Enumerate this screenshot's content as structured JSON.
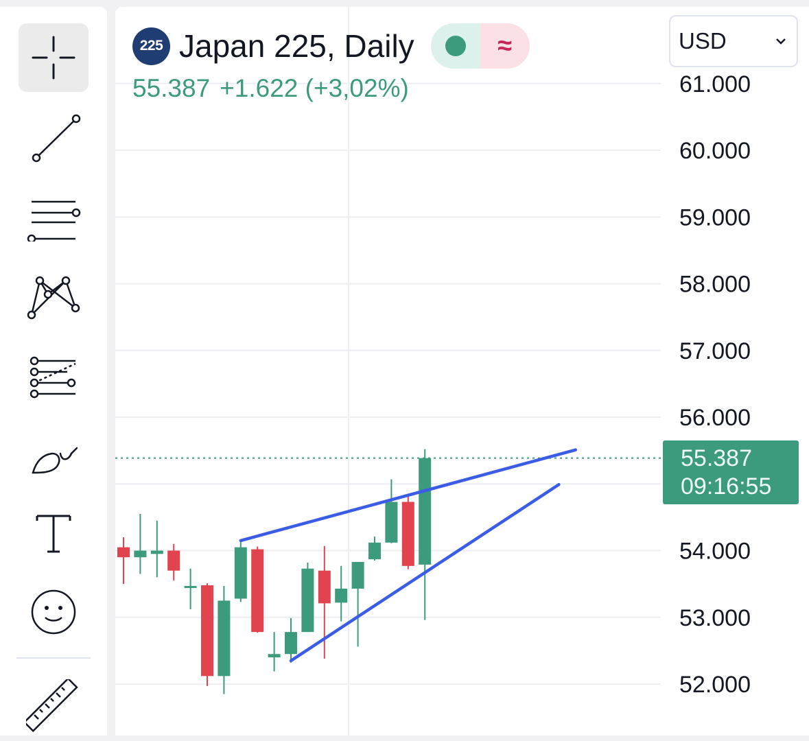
{
  "toolbar": {
    "tools": [
      {
        "name": "crosshair",
        "active": true
      },
      {
        "name": "trend-line"
      },
      {
        "name": "horizontal-lines"
      },
      {
        "name": "pattern"
      },
      {
        "name": "fib-retracement"
      },
      {
        "name": "brush"
      },
      {
        "name": "text"
      },
      {
        "name": "emoji"
      },
      {
        "name": "ruler"
      }
    ]
  },
  "header": {
    "symbol_badge": "225",
    "title": "Japan 225, Daily",
    "status_icon": "≈",
    "price": "55.387",
    "change": "+1.622 (+3,02%)"
  },
  "currency": {
    "label": "USD"
  },
  "price_tag": {
    "price": "55.387",
    "countdown": "09:16:55"
  },
  "colors": {
    "up": "#3c9a7d",
    "down": "#e2444f",
    "trendline": "#3b5ce6",
    "grid": "#eceef2",
    "axis_text": "#131722"
  },
  "chart_data": {
    "type": "candlestick",
    "title": "Japan 225, Daily",
    "currency": "USD",
    "y_axis": {
      "ticks": [
        "61.000",
        "60.000",
        "59.000",
        "58.000",
        "57.000",
        "56.000",
        "54.000",
        "53.000",
        "52.000"
      ],
      "tick_values": [
        61000,
        60000,
        59000,
        58000,
        57000,
        56000,
        54000,
        53000,
        52000
      ],
      "range": [
        51400,
        62000
      ]
    },
    "last_price": 55387,
    "candles": [
      {
        "o": 54050,
        "h": 54200,
        "l": 53500,
        "c": 53900
      },
      {
        "o": 53900,
        "h": 54550,
        "l": 53650,
        "c": 54000
      },
      {
        "o": 53950,
        "h": 54450,
        "l": 53600,
        "c": 54000
      },
      {
        "o": 54000,
        "h": 54100,
        "l": 53550,
        "c": 53700
      },
      {
        "o": 53470,
        "h": 53730,
        "l": 53120,
        "c": 53470
      },
      {
        "o": 53480,
        "h": 53510,
        "l": 51970,
        "c": 52120
      },
      {
        "o": 52120,
        "h": 53470,
        "l": 51850,
        "c": 53250
      },
      {
        "o": 53280,
        "h": 54170,
        "l": 53230,
        "c": 54050
      },
      {
        "o": 54020,
        "h": 54060,
        "l": 52770,
        "c": 52780
      },
      {
        "o": 52400,
        "h": 52780,
        "l": 52190,
        "c": 52450
      },
      {
        "o": 52450,
        "h": 52990,
        "l": 52320,
        "c": 52780
      },
      {
        "o": 52780,
        "h": 53820,
        "l": 52780,
        "c": 53730
      },
      {
        "o": 53700,
        "h": 54070,
        "l": 52380,
        "c": 53210
      },
      {
        "o": 53220,
        "h": 53770,
        "l": 52940,
        "c": 53430
      },
      {
        "o": 53430,
        "h": 53830,
        "l": 52560,
        "c": 53830
      },
      {
        "o": 53870,
        "h": 54210,
        "l": 53850,
        "c": 54120
      },
      {
        "o": 54120,
        "h": 55070,
        "l": 54110,
        "c": 54730
      },
      {
        "o": 54730,
        "h": 54810,
        "l": 53720,
        "c": 53770
      },
      {
        "o": 53790,
        "h": 55520,
        "l": 52960,
        "c": 55387
      }
    ],
    "trendlines": [
      {
        "from": {
          "candle": 7,
          "price": 54150
        },
        "to": {
          "candle": 27,
          "price": 55510
        }
      },
      {
        "from": {
          "candle": 10,
          "price": 52350
        },
        "to": {
          "candle": 26,
          "price": 54990
        }
      }
    ]
  }
}
